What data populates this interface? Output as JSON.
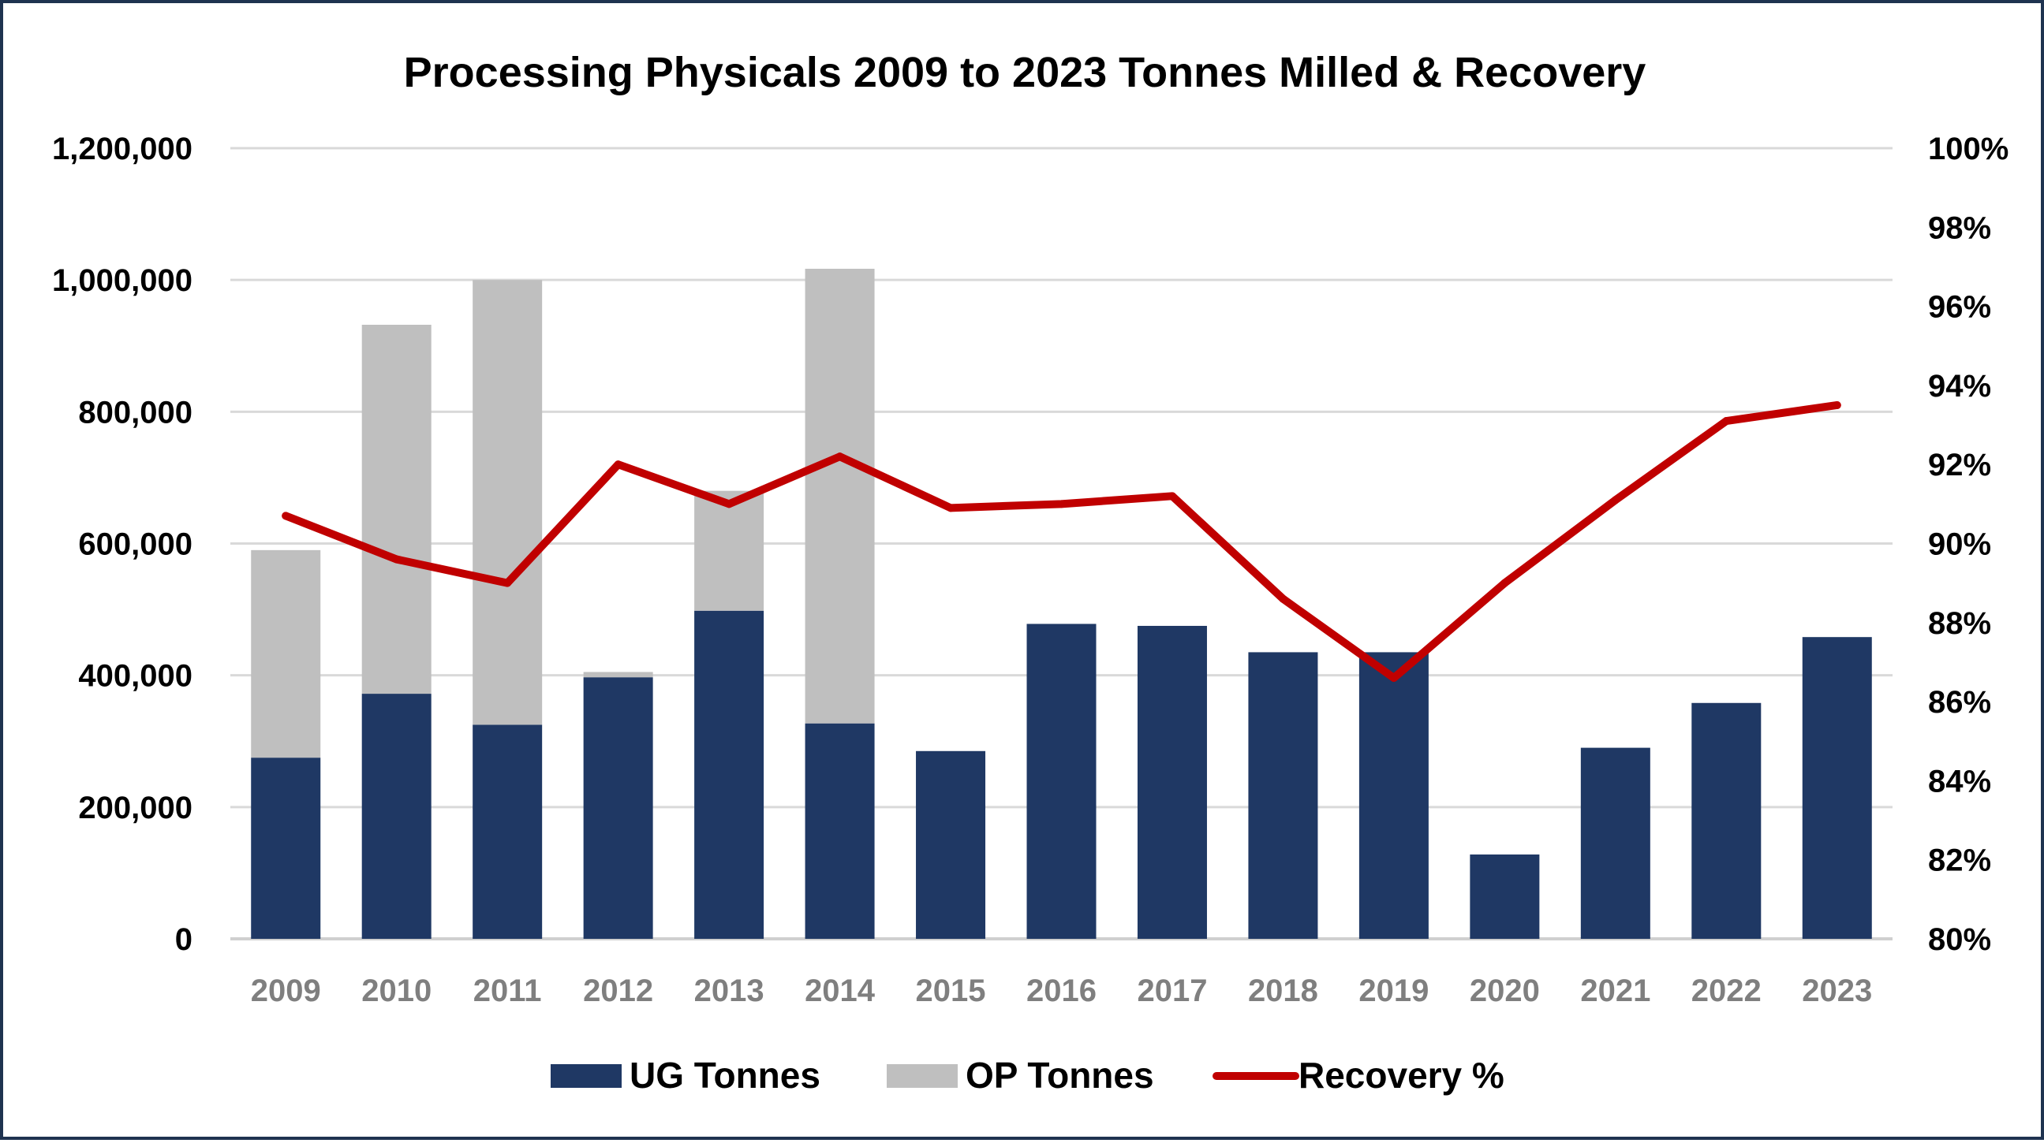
{
  "chart_data": {
    "type": "bar",
    "stacked": true,
    "title": "Processing Physicals 2009 to 2023 Tonnes Milled & Recovery",
    "categories": [
      "2009",
      "2010",
      "2011",
      "2012",
      "2013",
      "2014",
      "2015",
      "2016",
      "2017",
      "2018",
      "2019",
      "2020",
      "2021",
      "2022",
      "2023"
    ],
    "series": [
      {
        "name": "UG Tonnes",
        "type": "bar",
        "axis": "left",
        "color": "#1f3864",
        "values": [
          275000,
          372000,
          325000,
          397000,
          498000,
          327000,
          285000,
          478000,
          475000,
          435000,
          435000,
          128000,
          290000,
          358000,
          458000
        ]
      },
      {
        "name": "OP Tonnes",
        "type": "bar",
        "axis": "left",
        "color": "#bfbfbf",
        "values": [
          315000,
          560000,
          675000,
          8000,
          182000,
          690000,
          0,
          0,
          0,
          0,
          0,
          0,
          0,
          0,
          0
        ]
      },
      {
        "name": "Recovery %",
        "type": "line",
        "axis": "right",
        "color": "#c00000",
        "values": [
          90.7,
          89.6,
          89.0,
          92.0,
          91.0,
          92.2,
          90.9,
          91.0,
          91.2,
          88.6,
          86.6,
          89.0,
          91.1,
          93.1,
          93.5
        ]
      }
    ],
    "y_left": {
      "ylim": [
        0,
        1200000
      ],
      "ticks": [
        0,
        200000,
        400000,
        600000,
        800000,
        1000000,
        1200000
      ],
      "tick_labels": [
        "0",
        "200,000",
        "400,000",
        "600,000",
        "800,000",
        "1,000,000",
        "1,200,000"
      ]
    },
    "y_right": {
      "ylim": [
        80,
        100
      ],
      "ticks": [
        80,
        82,
        84,
        86,
        88,
        90,
        92,
        94,
        96,
        98,
        100
      ],
      "tick_labels": [
        "80%",
        "82%",
        "84%",
        "86%",
        "88%",
        "90%",
        "92%",
        "94%",
        "96%",
        "98%",
        "100%"
      ]
    },
    "xlabel": "",
    "ylabel": "",
    "grid": true,
    "legend_position": "bottom",
    "legend": [
      "UG Tonnes",
      "OP Tonnes",
      "Recovery %"
    ]
  }
}
